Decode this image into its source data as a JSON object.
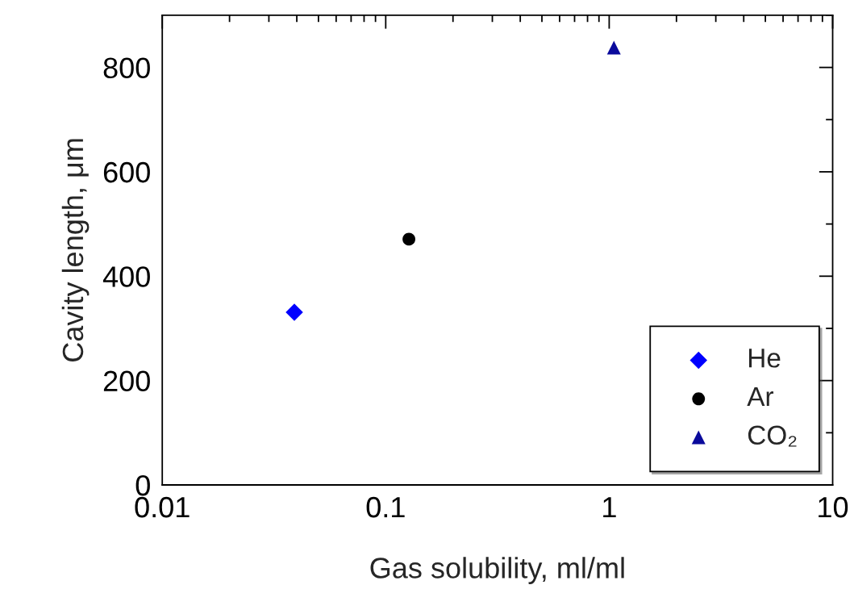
{
  "chart_data": {
    "type": "scatter",
    "xlabel": "Gas solubility, ml/ml",
    "ylabel": "Cavity length, μm",
    "log": "x",
    "xlim": [
      0.01,
      10
    ],
    "xticks": [
      0.01,
      0.1,
      1,
      10
    ],
    "ylim": [
      0,
      900
    ],
    "yticks": [
      0,
      200,
      400,
      600,
      800
    ],
    "grid": false,
    "legend": "bottom right",
    "series": [
      {
        "name": "He",
        "color": "#0000ff",
        "marker": "diamond",
        "x": [
          0.039
        ],
        "values": [
          331
        ]
      },
      {
        "name": "Ar",
        "color": "#000000",
        "marker": "circle",
        "x": [
          0.127
        ],
        "values": [
          471
        ]
      },
      {
        "name": "CO₂",
        "color": "#0a0a9c",
        "marker": "triangle",
        "x": [
          1.05
        ],
        "values": [
          838
        ]
      }
    ]
  }
}
